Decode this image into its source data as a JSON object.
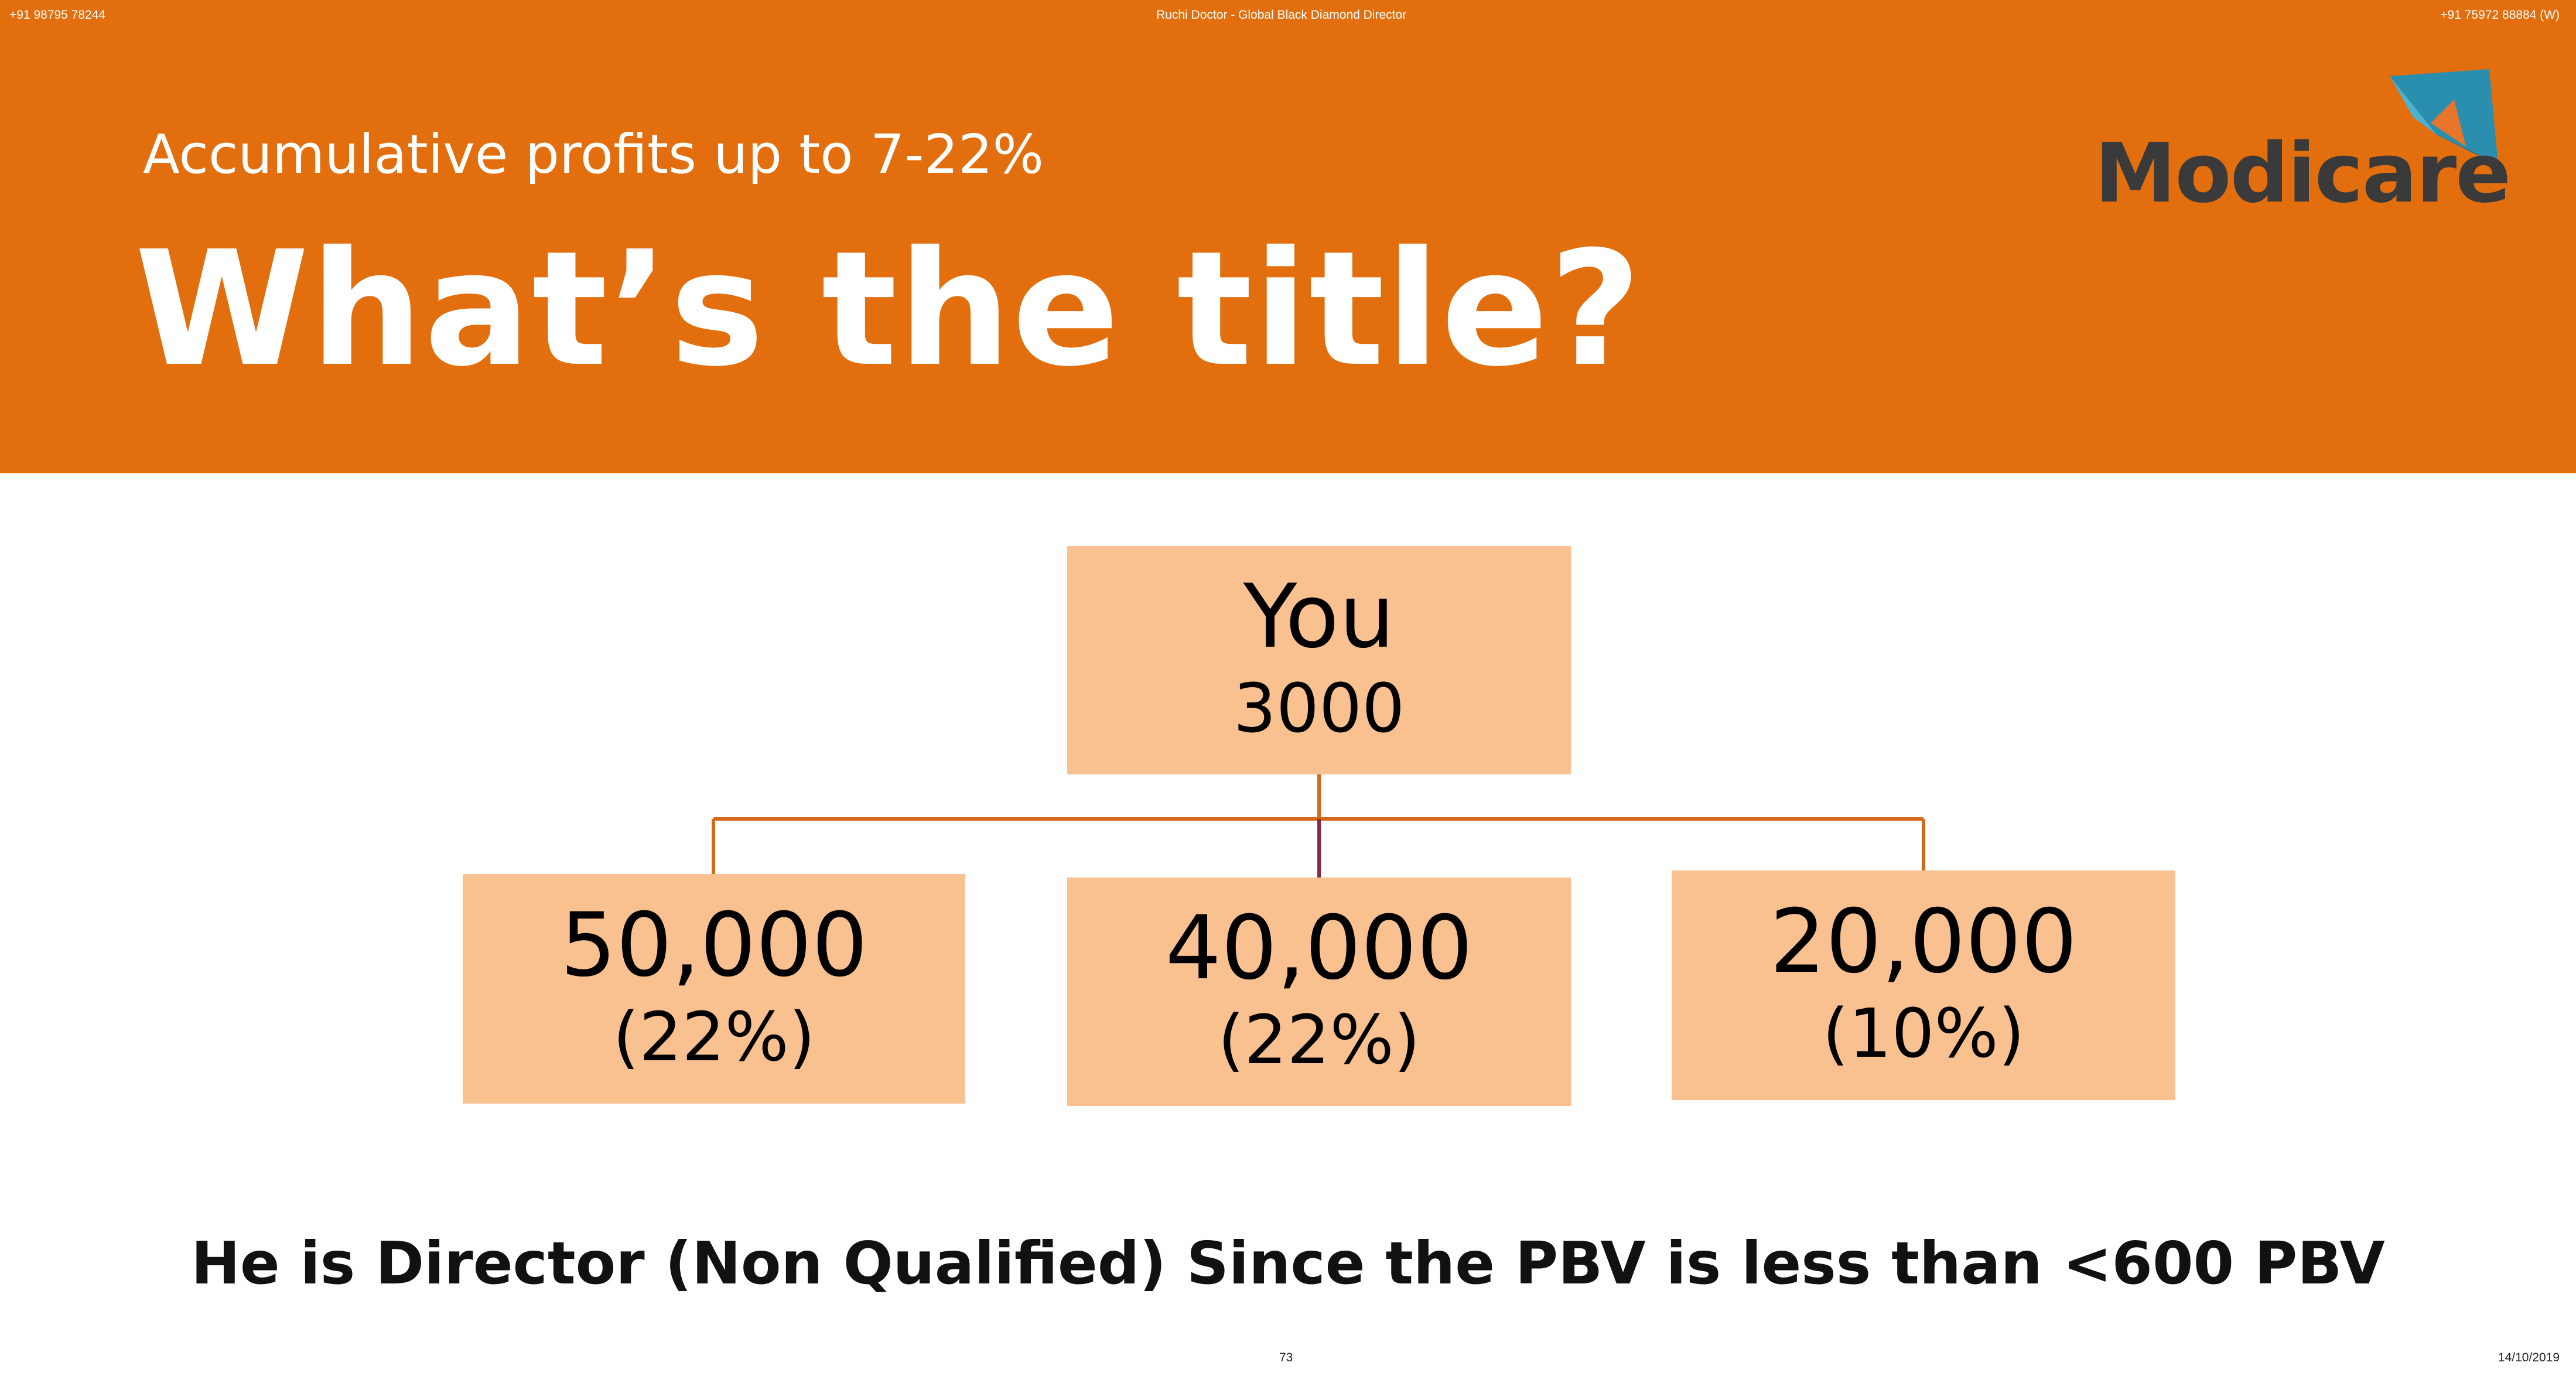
{
  "top_bar": {
    "left": "+91 98795 78244",
    "center": "Ruchi Doctor - Global Black Diamond Director",
    "right": "+91 75972 88884 (W)"
  },
  "header": {
    "subtitle": "Accumulative profits up to 7-22%",
    "title": "What’s the title?",
    "logo_text": "Modicare"
  },
  "colors": {
    "header_bg": "#e26e0e",
    "box_fill": "#f9c090",
    "connector": "#d4691a"
  },
  "tree": {
    "root": {
      "label": "You",
      "value": "3000"
    },
    "children": [
      {
        "value": "50,000",
        "percent": "(22%)"
      },
      {
        "value": "40,000",
        "percent": "(22%)"
      },
      {
        "value": "20,000",
        "percent": "(10%)"
      }
    ]
  },
  "note": "He is Director (Non Qualified) Since the PBV is less than <600 PBV",
  "footer": {
    "page_number": "73",
    "date": "14/10/2019"
  }
}
